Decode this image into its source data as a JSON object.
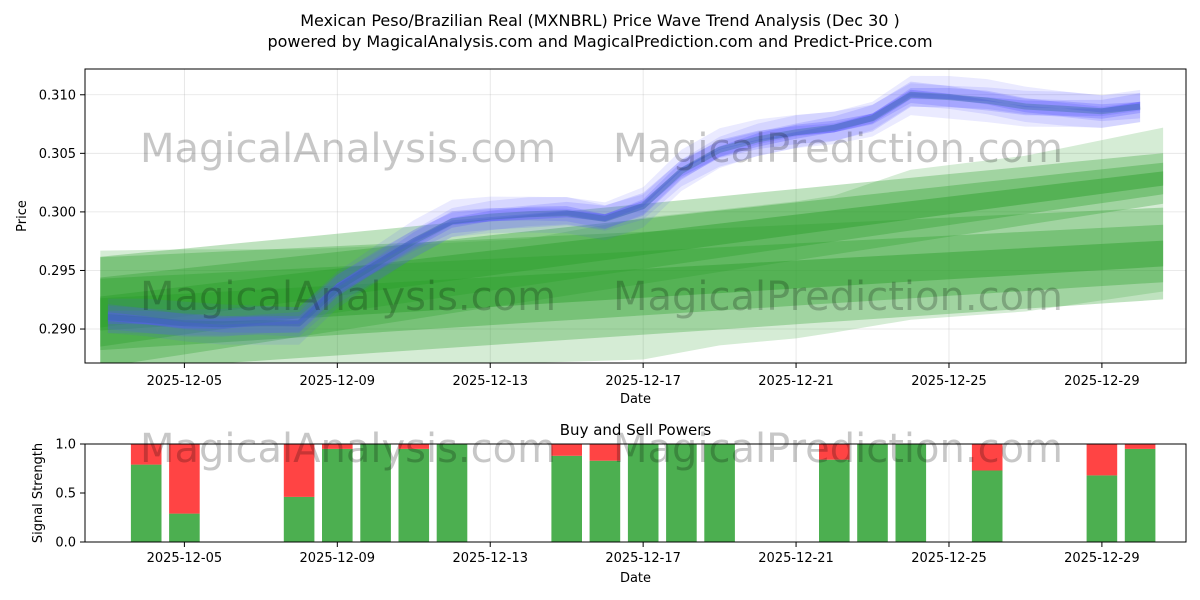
{
  "title_line1": "Mexican Peso/Brazilian Real (MXNBRL) Price Wave Trend Analysis (Dec 30 )",
  "title_line2": "powered by MagicalAnalysis.com and MagicalPrediction.com and Predict-Price.com",
  "watermarks": [
    "MagicalAnalysis.com",
    "MagicalPrediction.com"
  ],
  "chart_data": [
    {
      "type": "area",
      "title": "Mexican Peso/Brazilian Real (MXNBRL) Price Wave Trend Analysis (Dec 30 )",
      "xlabel": "Date",
      "ylabel": "Price",
      "xlim": [
        2.4,
        31.2
      ],
      "ylim": [
        0.2871,
        0.3122
      ],
      "x_ticks": [
        {
          "day": 5,
          "label": "2025-12-05"
        },
        {
          "day": 9,
          "label": "2025-12-09"
        },
        {
          "day": 13,
          "label": "2025-12-13"
        },
        {
          "day": 17,
          "label": "2025-12-17"
        },
        {
          "day": 21,
          "label": "2025-12-21"
        },
        {
          "day": 25,
          "label": "2025-12-25"
        },
        {
          "day": 29,
          "label": "2025-12-29"
        }
      ],
      "y_ticks": [
        {
          "value": 0.29,
          "label": "0.290"
        },
        {
          "value": 0.295,
          "label": "0.295"
        },
        {
          "value": 0.3,
          "label": "0.300"
        },
        {
          "value": 0.305,
          "label": "0.305"
        },
        {
          "value": 0.31,
          "label": "0.310"
        }
      ],
      "grid": true,
      "series": [
        {
          "name": "blue-price-wave",
          "color": "#5555ff",
          "days": [
            3.0,
            4.0,
            5.0,
            6.0,
            7.0,
            8.0,
            9.0,
            10.0,
            11.0,
            12.0,
            13.0,
            14.0,
            15.0,
            16.0,
            17.0,
            18.0,
            19.0,
            20.0,
            21.0,
            22.0,
            23.0,
            24.0,
            25.0,
            26.0,
            27.0,
            28.0,
            29.0,
            30.0
          ],
          "center": [
            0.291,
            0.2908,
            0.2905,
            0.2904,
            0.2905,
            0.2905,
            0.2935,
            0.2955,
            0.2975,
            0.2992,
            0.2996,
            0.2998,
            0.2999,
            0.2994,
            0.3005,
            0.3035,
            0.3053,
            0.3062,
            0.3068,
            0.3072,
            0.308,
            0.31,
            0.3098,
            0.3095,
            0.309,
            0.3088,
            0.3086,
            0.309
          ]
        },
        {
          "name": "green-band-upper",
          "color": "#2ca02c",
          "days": [
            2.8,
            30.6
          ],
          "upper": [
            0.2944,
            0.3042
          ],
          "lower": [
            0.2885,
            0.3015
          ]
        },
        {
          "name": "green-band-lower",
          "color": "#2ca02c",
          "days": [
            2.8,
            30.6
          ],
          "upper": [
            0.2943,
            0.2989
          ],
          "lower": [
            0.2882,
            0.294
          ]
        }
      ]
    },
    {
      "type": "bar",
      "title": "Buy and Sell Powers",
      "xlabel": "Date",
      "ylabel": "Signal Strength",
      "xlim": [
        2.4,
        31.2
      ],
      "ylim": [
        0.0,
        1.0
      ],
      "y_ticks": [
        {
          "value": 0.0,
          "label": "0.0"
        },
        {
          "value": 0.5,
          "label": "0.5"
        },
        {
          "value": 1.0,
          "label": "1.0"
        }
      ],
      "x_ticks": [
        {
          "day": 5,
          "label": "2025-12-05"
        },
        {
          "day": 9,
          "label": "2025-12-09"
        },
        {
          "day": 13,
          "label": "2025-12-13"
        },
        {
          "day": 17,
          "label": "2025-12-17"
        },
        {
          "day": 21,
          "label": "2025-12-21"
        },
        {
          "day": 25,
          "label": "2025-12-25"
        },
        {
          "day": 29,
          "label": "2025-12-29"
        }
      ],
      "buy_color": "#4caf50",
      "sell_color": "#ff4444",
      "bars": [
        {
          "day": 4,
          "buy": 0.79
        },
        {
          "day": 5,
          "buy": 0.29
        },
        {
          "day": 8,
          "buy": 0.46
        },
        {
          "day": 9,
          "buy": 0.95
        },
        {
          "day": 10,
          "buy": 1.0
        },
        {
          "day": 11,
          "buy": 0.95
        },
        {
          "day": 12,
          "buy": 1.0
        },
        {
          "day": 15,
          "buy": 0.88
        },
        {
          "day": 16,
          "buy": 0.83
        },
        {
          "day": 17,
          "buy": 1.0
        },
        {
          "day": 18,
          "buy": 1.0
        },
        {
          "day": 19,
          "buy": 1.0
        },
        {
          "day": 22,
          "buy": 0.84
        },
        {
          "day": 23,
          "buy": 1.0
        },
        {
          "day": 24,
          "buy": 1.0
        },
        {
          "day": 26,
          "buy": 0.73
        },
        {
          "day": 29,
          "buy": 0.68
        },
        {
          "day": 30,
          "buy": 0.95
        }
      ]
    }
  ]
}
